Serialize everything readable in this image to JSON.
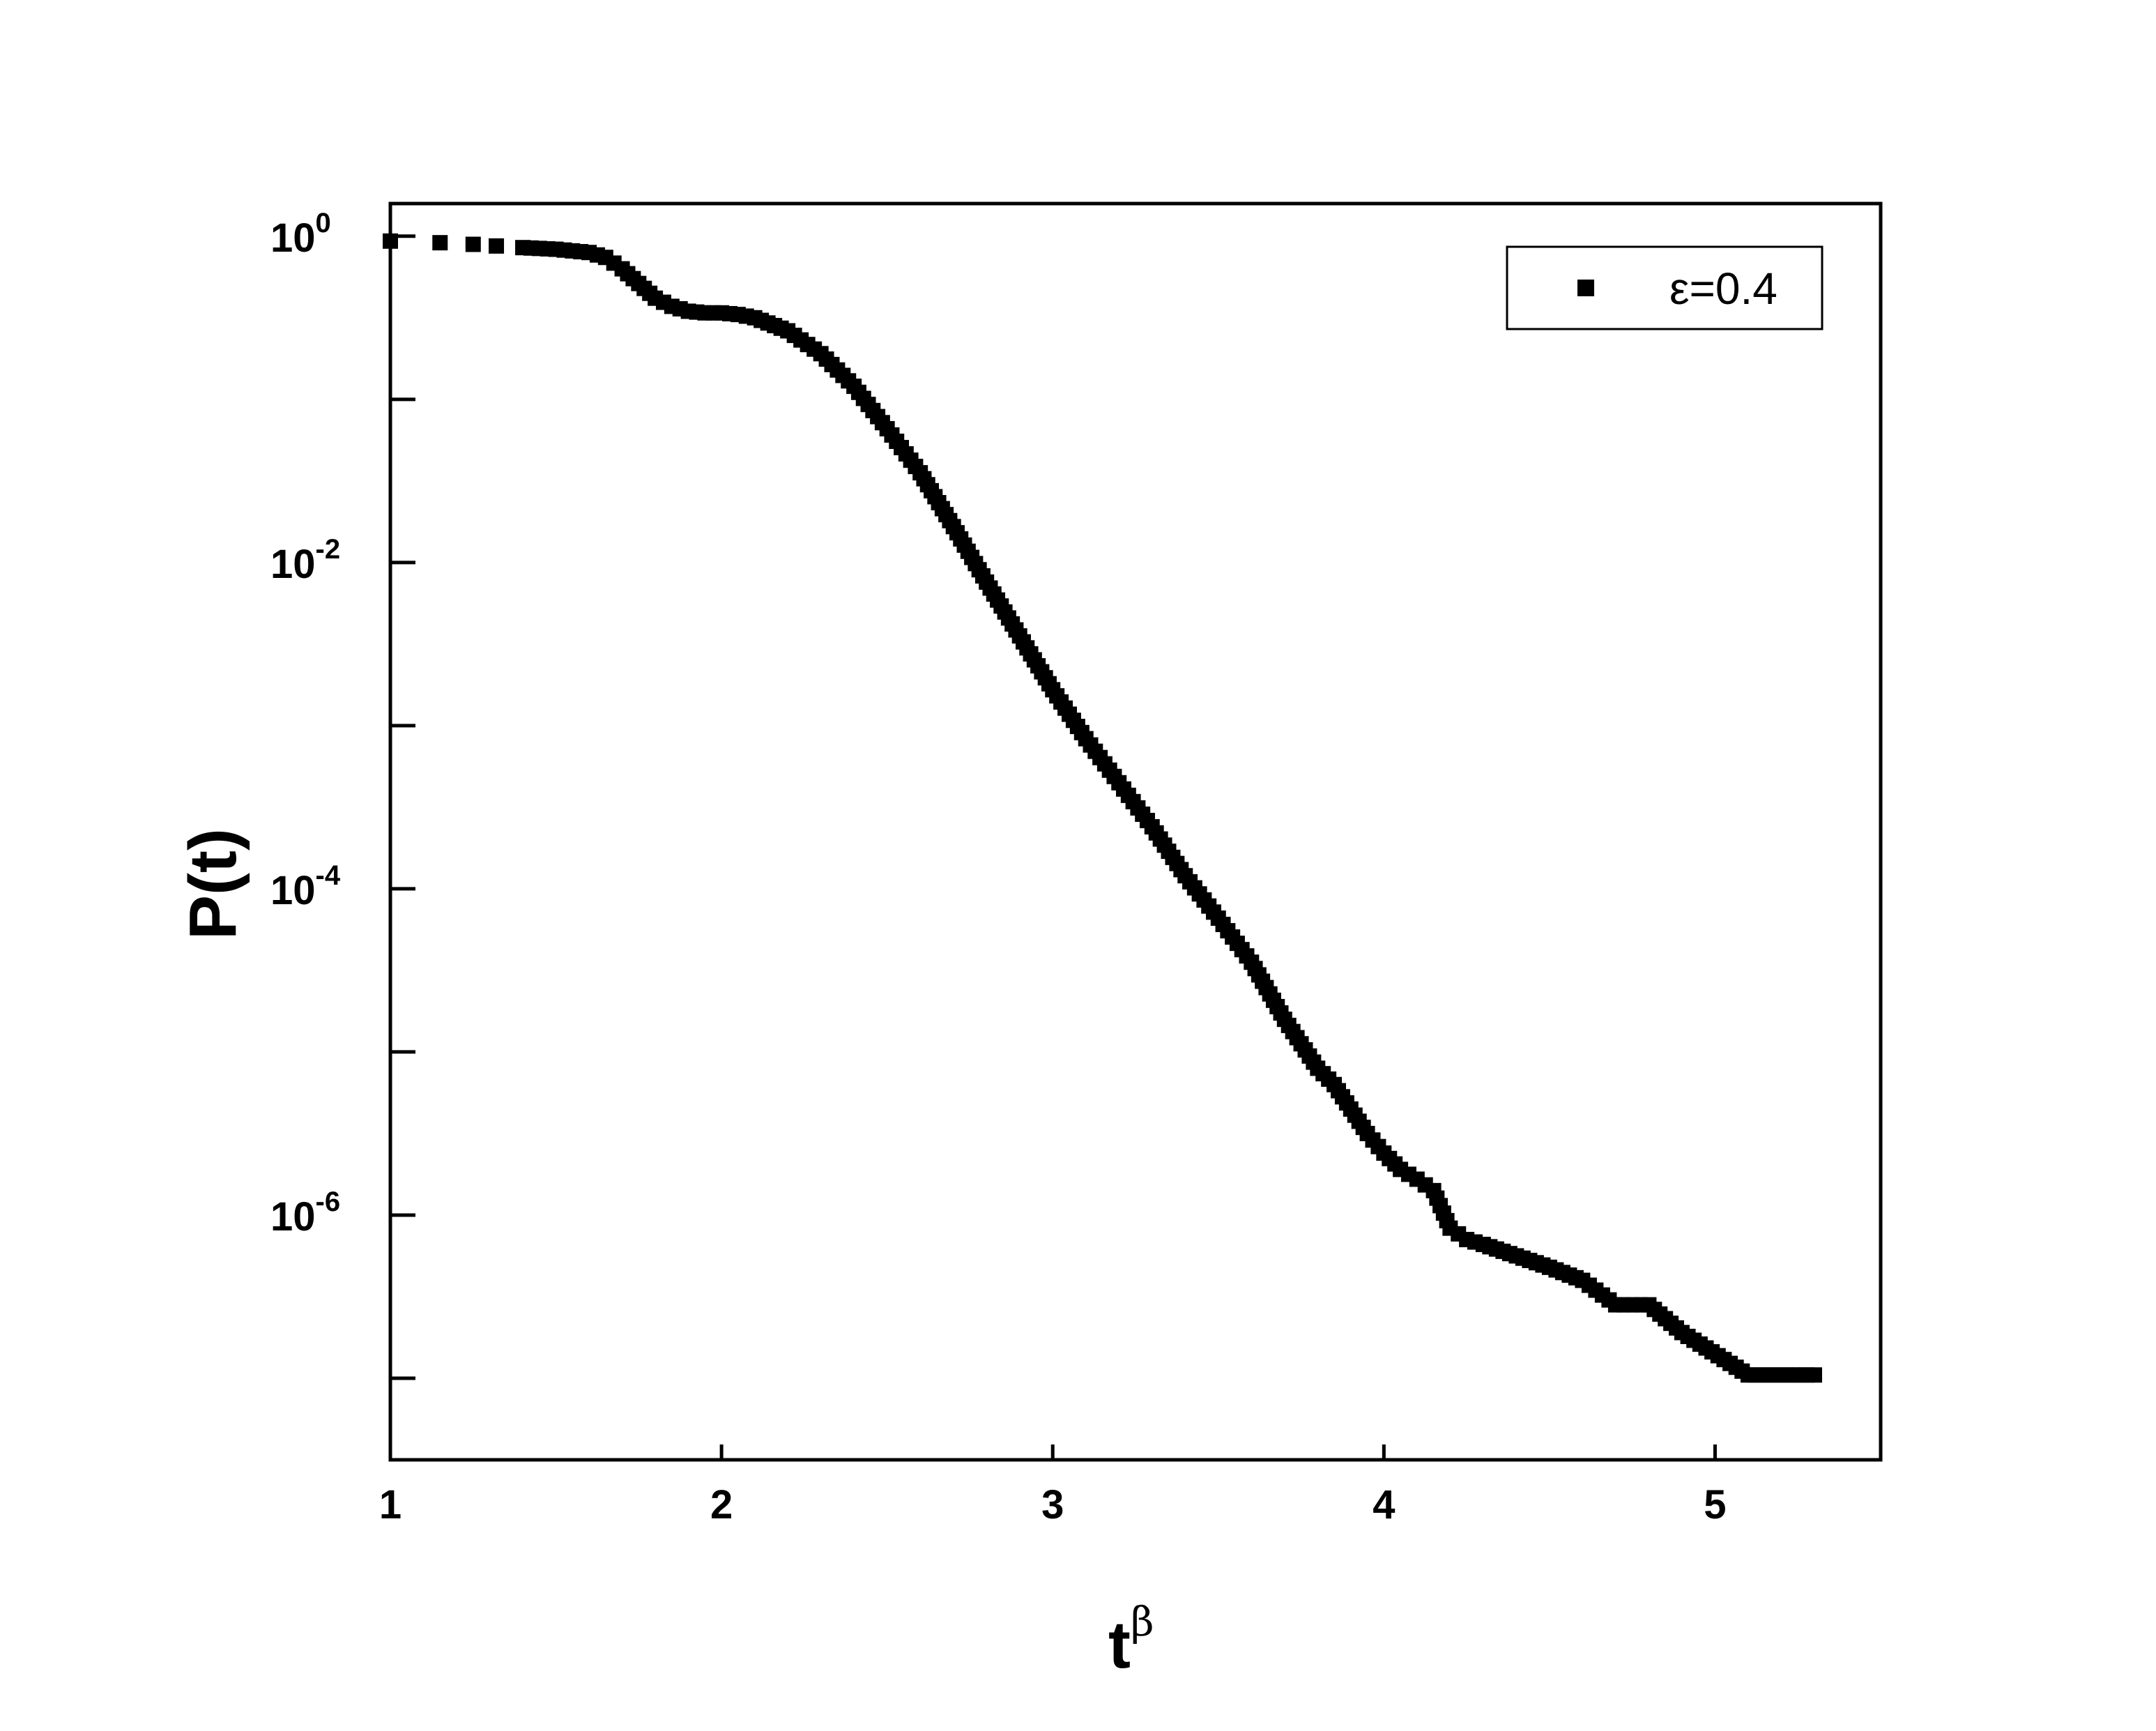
{
  "chart_data": {
    "type": "scatter",
    "title": "",
    "xlabel": "t",
    "xlabel_superscript": "β",
    "ylabel": "P(t)",
    "xscale": "linear",
    "yscale": "log",
    "xlim": [
      1,
      5.5
    ],
    "ylim_log10": [
      -7.5,
      0.2
    ],
    "xticks": [
      {
        "value": 1,
        "label": "1"
      },
      {
        "value": 2,
        "label": "2"
      },
      {
        "value": 3,
        "label": "3"
      },
      {
        "value": 4,
        "label": "4"
      },
      {
        "value": 5,
        "label": "5"
      }
    ],
    "yticks": [
      {
        "log10": 0,
        "base": "10",
        "exp": "0"
      },
      {
        "log10": -2,
        "base": "10",
        "exp": "-2"
      },
      {
        "log10": -4,
        "base": "10",
        "exp": "-4"
      },
      {
        "log10": -6,
        "base": "10",
        "exp": "-6"
      }
    ],
    "y_minor_ticks_log10": [
      -1,
      -3,
      -5,
      -7
    ],
    "grid": false,
    "legend": {
      "placement": "top-right",
      "entries": [
        {
          "marker": "square",
          "label": "ε=0.4"
        }
      ]
    },
    "series": [
      {
        "name": "ε=0.4",
        "marker": "square",
        "color": "#000000",
        "x": [
          1.0,
          1.15,
          1.25,
          1.32,
          1.4,
          1.5,
          1.6,
          1.65,
          1.7,
          1.75,
          1.8,
          1.85,
          1.9,
          1.95,
          2.0,
          2.05,
          2.1,
          2.2,
          2.3,
          2.4,
          2.5,
          2.6,
          2.7,
          2.8,
          2.9,
          3.0,
          3.1,
          3.2,
          3.3,
          3.4,
          3.5,
          3.6,
          3.7,
          3.8,
          3.85,
          3.9,
          3.95,
          4.0,
          4.05,
          4.1,
          4.15,
          4.2,
          4.25,
          4.3,
          4.4,
          4.5,
          4.6,
          4.7,
          4.8,
          4.9,
          5.1,
          5.3
        ],
        "y_log10": [
          -0.03,
          -0.04,
          -0.05,
          -0.06,
          -0.07,
          -0.08,
          -0.1,
          -0.13,
          -0.2,
          -0.29,
          -0.38,
          -0.43,
          -0.46,
          -0.47,
          -0.47,
          -0.48,
          -0.5,
          -0.58,
          -0.72,
          -0.92,
          -1.18,
          -1.45,
          -1.78,
          -2.12,
          -2.45,
          -2.78,
          -3.08,
          -3.35,
          -3.62,
          -3.92,
          -4.18,
          -4.45,
          -4.8,
          -5.1,
          -5.2,
          -5.35,
          -5.5,
          -5.62,
          -5.72,
          -5.78,
          -5.85,
          -6.08,
          -6.15,
          -6.18,
          -6.25,
          -6.32,
          -6.4,
          -6.55,
          -6.55,
          -6.72,
          -6.98,
          -6.98
        ]
      }
    ]
  }
}
